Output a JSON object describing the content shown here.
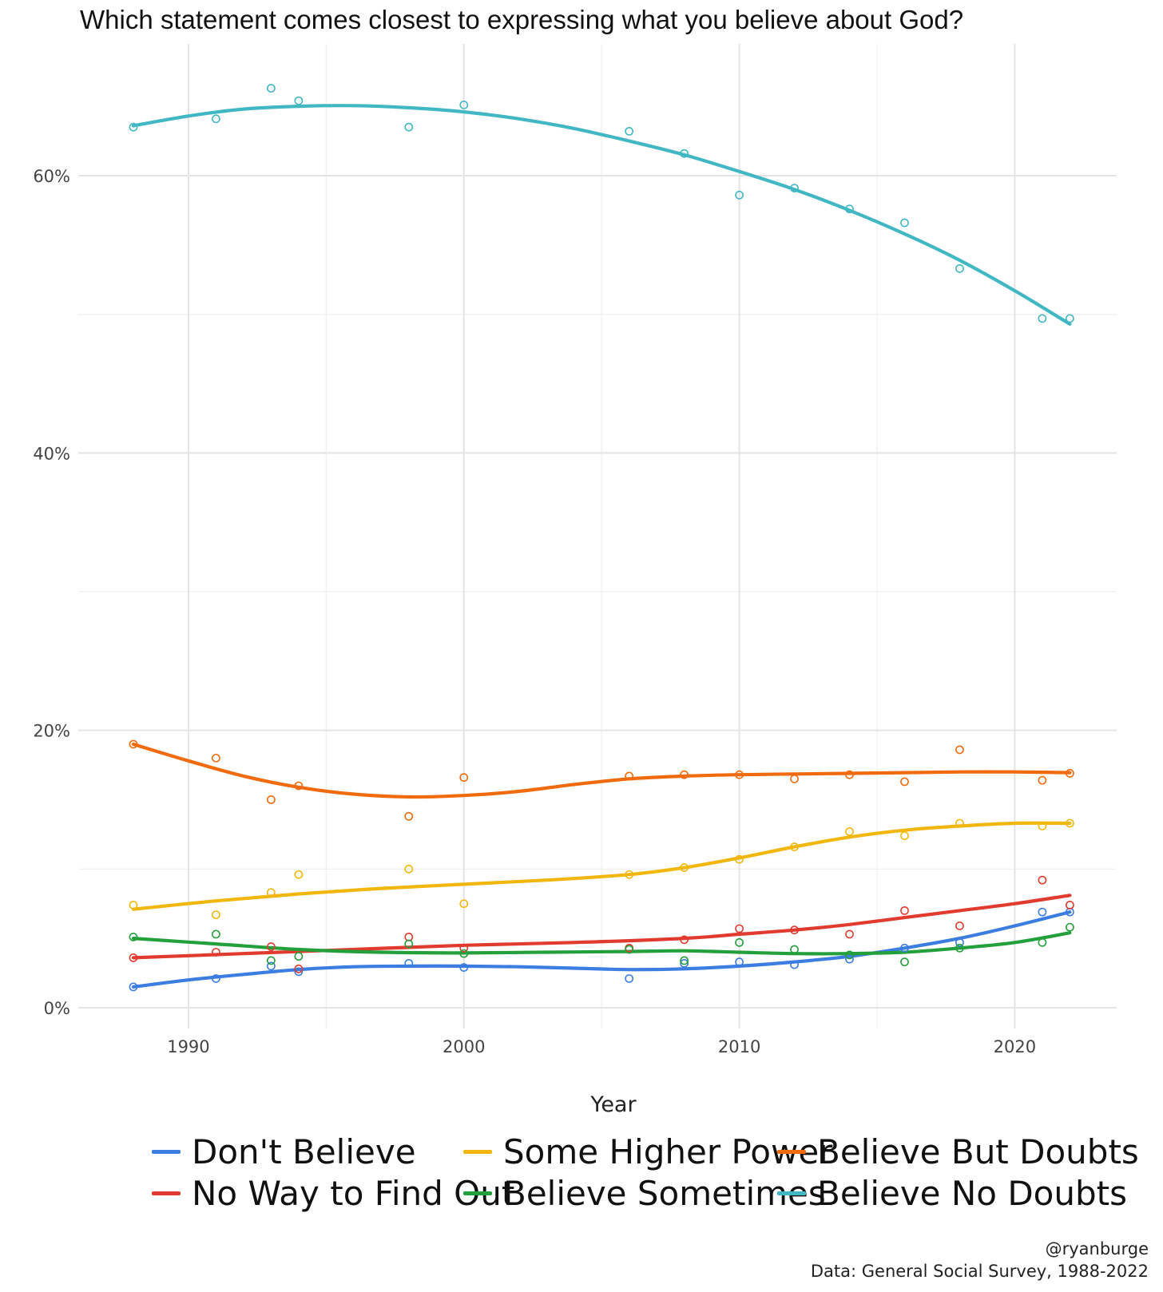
{
  "chart_data": {
    "type": "line",
    "title": "Which statement comes closest to expressing what you believe about God?",
    "xlabel": "Year",
    "ylabel": "",
    "xlim": [
      1986,
      2023.7
    ],
    "ylim": [
      -1.5,
      69.5
    ],
    "x_ticks": [
      1990,
      2000,
      2010,
      2020
    ],
    "x_tick_labels": [
      "1990",
      "2000",
      "2010",
      "2020"
    ],
    "y_ticks": [
      0,
      20,
      40,
      60
    ],
    "y_tick_labels": [
      "0%",
      "20%",
      "40%",
      "60%"
    ],
    "grid": true,
    "legend_position": "bottom",
    "series": [
      {
        "name": "Don't Believe",
        "color": "#3b7de0",
        "points": [
          [
            1988,
            1.5
          ],
          [
            1991,
            2.1
          ],
          [
            1993,
            3.0
          ],
          [
            1994,
            2.6
          ],
          [
            1998,
            3.2
          ],
          [
            2000,
            2.9
          ],
          [
            2006,
            2.1
          ],
          [
            2008,
            3.2
          ],
          [
            2010,
            3.3
          ],
          [
            2012,
            3.1
          ],
          [
            2014,
            3.5
          ],
          [
            2016,
            4.3
          ],
          [
            2018,
            4.7
          ],
          [
            2021,
            6.9
          ],
          [
            2022,
            6.9
          ]
        ],
        "trend": [
          [
            1988,
            1.5
          ],
          [
            1990,
            2.0
          ],
          [
            1992,
            2.4
          ],
          [
            1994,
            2.75
          ],
          [
            1996,
            2.95
          ],
          [
            1998,
            3.0
          ],
          [
            2000,
            3.0
          ],
          [
            2002,
            2.95
          ],
          [
            2004,
            2.85
          ],
          [
            2006,
            2.75
          ],
          [
            2008,
            2.8
          ],
          [
            2010,
            3.0
          ],
          [
            2012,
            3.3
          ],
          [
            2014,
            3.7
          ],
          [
            2016,
            4.3
          ],
          [
            2018,
            5.0
          ],
          [
            2020,
            5.9
          ],
          [
            2022,
            6.9
          ]
        ]
      },
      {
        "name": "No Way to Find Out",
        "color": "#e03b2e",
        "points": [
          [
            1988,
            3.6
          ],
          [
            1991,
            4.0
          ],
          [
            1993,
            4.4
          ],
          [
            1994,
            2.8
          ],
          [
            1998,
            5.1
          ],
          [
            2000,
            4.3
          ],
          [
            2006,
            4.3
          ],
          [
            2008,
            4.9
          ],
          [
            2010,
            5.7
          ],
          [
            2012,
            5.6
          ],
          [
            2014,
            5.3
          ],
          [
            2016,
            7.0
          ],
          [
            2018,
            5.9
          ],
          [
            2021,
            9.2
          ],
          [
            2022,
            7.4
          ]
        ],
        "trend": [
          [
            1988,
            3.6
          ],
          [
            1992,
            3.9
          ],
          [
            1996,
            4.2
          ],
          [
            2000,
            4.5
          ],
          [
            2004,
            4.7
          ],
          [
            2008,
            5.0
          ],
          [
            2010,
            5.3
          ],
          [
            2012,
            5.6
          ],
          [
            2014,
            6.0
          ],
          [
            2016,
            6.5
          ],
          [
            2018,
            7.0
          ],
          [
            2020,
            7.5
          ],
          [
            2022,
            8.1
          ]
        ]
      },
      {
        "name": "Some Higher Power",
        "color": "#f2b70f",
        "points": [
          [
            1988,
            7.4
          ],
          [
            1991,
            6.7
          ],
          [
            1993,
            8.3
          ],
          [
            1994,
            9.6
          ],
          [
            1998,
            10.0
          ],
          [
            2000,
            7.5
          ],
          [
            2006,
            9.6
          ],
          [
            2008,
            10.1
          ],
          [
            2010,
            10.7
          ],
          [
            2012,
            11.6
          ],
          [
            2014,
            12.7
          ],
          [
            2016,
            12.4
          ],
          [
            2018,
            13.3
          ],
          [
            2021,
            13.1
          ],
          [
            2022,
            13.3
          ]
        ],
        "trend": [
          [
            1988,
            7.1
          ],
          [
            1991,
            7.7
          ],
          [
            1994,
            8.2
          ],
          [
            1997,
            8.6
          ],
          [
            2000,
            8.9
          ],
          [
            2003,
            9.2
          ],
          [
            2006,
            9.6
          ],
          [
            2008,
            10.1
          ],
          [
            2010,
            10.8
          ],
          [
            2012,
            11.6
          ],
          [
            2014,
            12.3
          ],
          [
            2016,
            12.8
          ],
          [
            2018,
            13.1
          ],
          [
            2020,
            13.3
          ],
          [
            2022,
            13.3
          ]
        ]
      },
      {
        "name": "Believe But Doubts",
        "color": "#f06a0e",
        "points": [
          [
            1988,
            19.0
          ],
          [
            1991,
            18.0
          ],
          [
            1993,
            15.0
          ],
          [
            1994,
            16.0
          ],
          [
            1998,
            13.8
          ],
          [
            2000,
            16.6
          ],
          [
            2006,
            16.7
          ],
          [
            2008,
            16.8
          ],
          [
            2010,
            16.8
          ],
          [
            2012,
            16.5
          ],
          [
            2014,
            16.8
          ],
          [
            2016,
            16.3
          ],
          [
            2018,
            18.6
          ],
          [
            2021,
            16.4
          ],
          [
            2022,
            16.9
          ]
        ],
        "trend": [
          [
            1988,
            19.0
          ],
          [
            1990,
            17.8
          ],
          [
            1992,
            16.7
          ],
          [
            1994,
            15.9
          ],
          [
            1996,
            15.4
          ],
          [
            1998,
            15.2
          ],
          [
            2000,
            15.3
          ],
          [
            2002,
            15.6
          ],
          [
            2004,
            16.1
          ],
          [
            2006,
            16.5
          ],
          [
            2008,
            16.7
          ],
          [
            2010,
            16.8
          ],
          [
            2012,
            16.85
          ],
          [
            2014,
            16.9
          ],
          [
            2016,
            16.95
          ],
          [
            2018,
            17.0
          ],
          [
            2020,
            17.0
          ],
          [
            2022,
            16.95
          ]
        ]
      },
      {
        "name": "Believe Sometimes",
        "color": "#23a03c",
        "points": [
          [
            1988,
            5.1
          ],
          [
            1991,
            5.3
          ],
          [
            1993,
            3.4
          ],
          [
            1994,
            3.7
          ],
          [
            1998,
            4.6
          ],
          [
            2000,
            3.9
          ],
          [
            2006,
            4.2
          ],
          [
            2008,
            3.4
          ],
          [
            2010,
            4.7
          ],
          [
            2012,
            4.2
          ],
          [
            2014,
            3.8
          ],
          [
            2016,
            3.3
          ],
          [
            2018,
            4.3
          ],
          [
            2021,
            4.7
          ],
          [
            2022,
            5.8
          ]
        ],
        "trend": [
          [
            1988,
            5.0
          ],
          [
            1991,
            4.6
          ],
          [
            1994,
            4.2
          ],
          [
            1997,
            4.0
          ],
          [
            2000,
            3.95
          ],
          [
            2003,
            4.0
          ],
          [
            2006,
            4.05
          ],
          [
            2008,
            4.1
          ],
          [
            2010,
            4.0
          ],
          [
            2012,
            3.9
          ],
          [
            2014,
            3.9
          ],
          [
            2016,
            4.0
          ],
          [
            2018,
            4.3
          ],
          [
            2020,
            4.7
          ],
          [
            2022,
            5.4
          ]
        ]
      },
      {
        "name": "Believe No Doubts",
        "color": "#41b7c4",
        "points": [
          [
            1988,
            63.5
          ],
          [
            1991,
            64.1
          ],
          [
            1993,
            66.3
          ],
          [
            1994,
            65.4
          ],
          [
            1998,
            63.5
          ],
          [
            2000,
            65.1
          ],
          [
            2006,
            63.2
          ],
          [
            2008,
            61.6
          ],
          [
            2010,
            58.6
          ],
          [
            2012,
            59.1
          ],
          [
            2014,
            57.6
          ],
          [
            2016,
            56.6
          ],
          [
            2018,
            53.3
          ],
          [
            2021,
            49.7
          ],
          [
            2022,
            49.7
          ]
        ],
        "trend": [
          [
            1988,
            63.6
          ],
          [
            1990,
            64.3
          ],
          [
            1992,
            64.8
          ],
          [
            1994,
            65.0
          ],
          [
            1996,
            65.05
          ],
          [
            1998,
            64.9
          ],
          [
            2000,
            64.6
          ],
          [
            2002,
            64.1
          ],
          [
            2004,
            63.4
          ],
          [
            2006,
            62.5
          ],
          [
            2008,
            61.5
          ],
          [
            2010,
            60.3
          ],
          [
            2012,
            59.0
          ],
          [
            2014,
            57.5
          ],
          [
            2016,
            55.8
          ],
          [
            2018,
            53.9
          ],
          [
            2020,
            51.7
          ],
          [
            2022,
            49.3
          ]
        ]
      }
    ],
    "legend_rows": [
      [
        "Don't Believe",
        "Some Higher Power",
        "Believe But Doubts"
      ],
      [
        "No Way to Find Out",
        "Believe Sometimes",
        "Believe No Doubts"
      ]
    ]
  },
  "caption": {
    "author": "@ryanburge",
    "source": "Data: General Social Survey, 1988-2022"
  }
}
